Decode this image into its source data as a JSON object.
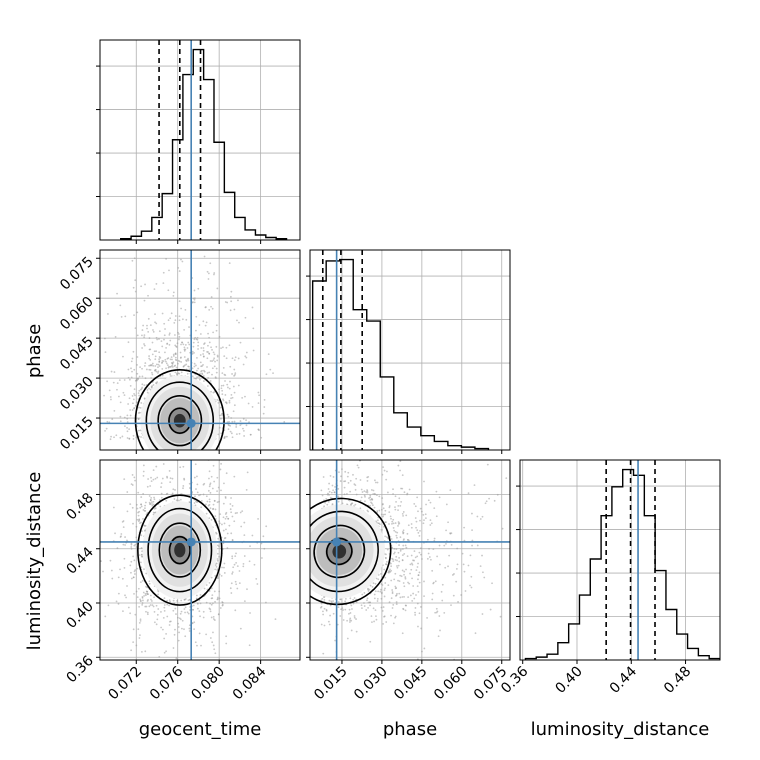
{
  "chart_data": {
    "type": "corner",
    "parameters": [
      "geocent_time",
      "phase",
      "luminosity_distance"
    ],
    "truth": {
      "geocent_time": 0.0773,
      "phase": 0.013,
      "luminosity_distance": 0.445
    },
    "colors": {
      "truth": "#4682b4",
      "hist": "#000000",
      "grid": "#b0b0b0",
      "scatter": "#9a9a9a"
    },
    "grid": true,
    "axes": {
      "geocent_time": {
        "range": [
          0.0685,
          0.0878
        ],
        "ticks": [
          0.072,
          0.076,
          0.08,
          0.084
        ],
        "tick_labels": [
          "0.072",
          "0.076",
          "0.080",
          "0.084"
        ]
      },
      "phase": {
        "range": [
          0.003,
          0.0781
        ],
        "ticks": [
          0.015,
          0.03,
          0.045,
          0.06,
          0.075
        ],
        "tick_labels": [
          "0.015",
          "0.030",
          "0.045",
          "0.060",
          "0.075"
        ]
      },
      "luminosity_distance": {
        "range": [
          0.358,
          0.5054
        ],
        "ticks": [
          0.36,
          0.4,
          0.44,
          0.48
        ],
        "tick_labels": [
          "0.36",
          "0.40",
          "0.44",
          "0.48"
        ]
      }
    },
    "diagonal": [
      {
        "param": "geocent_time",
        "bin_edges_range": [
          0.0705,
          0.0865
        ],
        "counts": [
          1,
          3,
          7,
          18,
          37,
          80,
          132,
          152,
          128,
          78,
          38,
          18,
          8,
          4,
          2,
          1
        ],
        "quantiles": [
          0.0742,
          0.0762,
          0.0782
        ]
      },
      {
        "param": "phase",
        "bin_edges_range": [
          0.004,
          0.07
        ],
        "counts": [
          118,
          132,
          133,
          98,
          90,
          51,
          26,
          16,
          10,
          6,
          3,
          2,
          1
        ],
        "quantiles": [
          0.0078,
          0.0146,
          0.0226
        ]
      },
      {
        "param": "luminosity_distance",
        "bin_edges_range": [
          0.362,
          0.5054
        ],
        "counts": [
          1,
          2,
          4,
          12,
          25,
          45,
          70,
          100,
          120,
          132,
          128,
          100,
          62,
          35,
          18,
          8,
          3,
          1
        ],
        "quantiles": [
          0.4215,
          0.4395,
          0.4575
        ]
      }
    ],
    "pairs": [
      {
        "x": "geocent_time",
        "y": "phase",
        "center": [
          0.0762,
          0.014
        ],
        "sigma": [
          0.0019,
          0.0085
        ]
      },
      {
        "x": "geocent_time",
        "y": "luminosity_distance",
        "center": [
          0.0762,
          0.439
        ],
        "sigma": [
          0.0018,
          0.018
        ]
      },
      {
        "x": "phase",
        "y": "luminosity_distance",
        "center": [
          0.014,
          0.438
        ],
        "sigma": [
          0.0085,
          0.0175
        ]
      }
    ]
  }
}
